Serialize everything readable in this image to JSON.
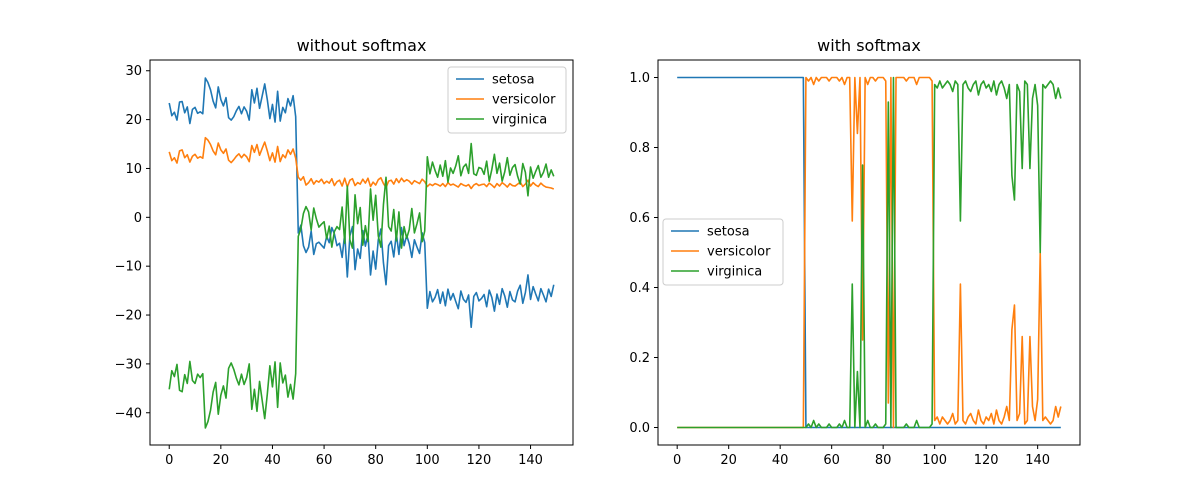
{
  "chart_data": [
    {
      "type": "line",
      "title": "without softmax",
      "xlabel": "",
      "ylabel": "",
      "xlim": [
        -7.45,
        156.45
      ],
      "ylim": [
        -46.6,
        32.2
      ],
      "xticks": [
        0,
        20,
        40,
        60,
        80,
        100,
        120,
        140
      ],
      "yticks": [
        -40,
        -30,
        -20,
        -10,
        0,
        10,
        20,
        30
      ],
      "grid": false,
      "legend_position": "top-right",
      "x": {
        "start": 0,
        "end": 149,
        "step": 1
      },
      "series": [
        {
          "name": "setosa",
          "color": "#1f77b4",
          "values": [
            23.4,
            20.8,
            21.5,
            19.9,
            23.6,
            23.7,
            21.4,
            22.6,
            19.2,
            22.1,
            22.5,
            21.3,
            21.6,
            21.2,
            28.5,
            27.6,
            26.1,
            23.8,
            22.4,
            26.7,
            24.1,
            22.8,
            24.5,
            20.4,
            19.9,
            20.6,
            21.8,
            22.7,
            21.2,
            22.6,
            21.7,
            19.9,
            26.1,
            23.4,
            26.4,
            22.3,
            24.8,
            27.3,
            24.1,
            20.2,
            23.1,
            19.5,
            25.8,
            19.7,
            22.5,
            21.4,
            24.3,
            22.8,
            24.9,
            20.6,
            -3.2,
            -1.6,
            -5.8,
            -7.2,
            -6.1,
            -2.8,
            -7.6,
            -5.4,
            -5.1,
            -5.7,
            -6.3,
            -3.9,
            -5.2,
            -2.1,
            -3.4,
            -5.8,
            -5.3,
            -8.2,
            -3.3,
            -12.2,
            -3.8,
            -1.9,
            -10.7,
            -6.5,
            -8.4,
            -2.7,
            -5.9,
            -3.5,
            -11.8,
            -6.9,
            -10.6,
            -4.6,
            -2.4,
            -9.3,
            -13.8,
            -5.8,
            -4.9,
            -8.1,
            -3.3,
            -7.6,
            -2.1,
            -5.8,
            -3.7,
            -5.4,
            -8.2,
            -4.6,
            -6.1,
            -7.4,
            -3.2,
            -5.2,
            -18.6,
            -15.2,
            -17.3,
            -16.4,
            -14.8,
            -17.6,
            -15.3,
            -18.1,
            -14.7,
            -16.9,
            -15.6,
            -17.2,
            -18.7,
            -15.1,
            -16.8,
            -17.4,
            -15.9,
            -22.5,
            -16.2,
            -15.4,
            -17.1,
            -16.6,
            -15.8,
            -18.3,
            -14.9,
            -16.4,
            -19.2,
            -15.7,
            -17.8,
            -14.6,
            -16.1,
            -18.4,
            -15.2,
            -16.9,
            -17.3,
            -15.1,
            -13.9,
            -17.6,
            -15.4,
            -11.8,
            -16.8,
            -14.2,
            -15.7,
            -17.1,
            -14.6,
            -15.9,
            -17.3,
            -14.7,
            -16.2,
            -13.8
          ]
        },
        {
          "name": "versicolor",
          "color": "#ff7f0e",
          "values": [
            13.4,
            11.6,
            12.2,
            11.1,
            13.6,
            13.8,
            12.2,
            12.8,
            11.3,
            12.5,
            12.9,
            12.1,
            12.4,
            12.1,
            16.3,
            15.8,
            14.9,
            13.6,
            12.8,
            15.2,
            13.8,
            13.1,
            14.0,
            11.7,
            11.2,
            11.8,
            12.5,
            13.0,
            12.2,
            12.9,
            12.4,
            11.4,
            14.7,
            13.3,
            14.9,
            12.7,
            14.1,
            15.4,
            13.6,
            11.6,
            13.2,
            11.3,
            14.5,
            11.4,
            12.8,
            12.2,
            13.8,
            12.9,
            14.0,
            12.1,
            8.2,
            7.6,
            8.3,
            6.6,
            7.1,
            7.9,
            6.8,
            7.5,
            7.2,
            7.8,
            6.9,
            7.4,
            7.0,
            7.9,
            6.5,
            7.3,
            7.6,
            6.4,
            8.0,
            6.2,
            7.6,
            7.9,
            6.5,
            7.1,
            6.8,
            7.8,
            7.0,
            8.0,
            6.3,
            7.2,
            6.6,
            7.7,
            8.1,
            6.9,
            6.1,
            7.4,
            7.6,
            6.8,
            7.9,
            7.1,
            8.0,
            7.3,
            7.7,
            7.4,
            6.8,
            7.5,
            7.2,
            6.9,
            7.8,
            7.3,
            6.3,
            6.8,
            6.5,
            6.9,
            6.7,
            6.4,
            6.9,
            6.3,
            7.1,
            6.6,
            6.8,
            6.5,
            6.2,
            6.9,
            6.6,
            6.4,
            6.7,
            5.9,
            6.6,
            6.9,
            6.5,
            6.7,
            6.8,
            6.3,
            7.0,
            6.6,
            6.1,
            6.9,
            6.4,
            7.1,
            6.7,
            6.2,
            6.9,
            6.5,
            6.4,
            6.8,
            7.2,
            6.3,
            6.8,
            7.6,
            6.4,
            7.1,
            6.6,
            6.3,
            7.0,
            6.5,
            6.2,
            6.1,
            6.0,
            5.8
          ]
        },
        {
          "name": "virginica",
          "color": "#2ca02c",
          "values": [
            -35.2,
            -31.4,
            -32.6,
            -30.1,
            -35.4,
            -35.7,
            -32.2,
            -34.0,
            -29.5,
            -33.4,
            -34.0,
            -32.1,
            -32.8,
            -32.0,
            -43.1,
            -41.8,
            -39.5,
            -35.8,
            -33.8,
            -40.3,
            -36.4,
            -34.5,
            -37.0,
            -30.9,
            -29.8,
            -31.1,
            -32.9,
            -34.3,
            -32.1,
            -34.2,
            -32.8,
            -30.0,
            -39.3,
            -35.2,
            -39.7,
            -33.6,
            -37.4,
            -41.2,
            -36.2,
            -30.4,
            -34.7,
            -29.6,
            -38.9,
            -29.8,
            -33.9,
            -32.3,
            -36.8,
            -34.2,
            -37.2,
            -32.0,
            -3.9,
            -2.4,
            0.8,
            2.2,
            1.1,
            -2.6,
            1.9,
            -0.3,
            -2.0,
            -1.4,
            -0.9,
            -4.4,
            -1.8,
            -6.1,
            -2.9,
            -1.9,
            -2.5,
            2.1,
            -5.3,
            6.4,
            -4.6,
            -6.3,
            4.6,
            -1.3,
            2.0,
            -5.7,
            -1.7,
            -5.0,
            5.8,
            -0.6,
            4.5,
            -3.8,
            -6.1,
            2.6,
            8.2,
            -1.9,
            -2.8,
            1.6,
            -4.8,
            1.1,
            -6.3,
            -1.9,
            -4.3,
            -2.5,
            1.8,
            -3.2,
            -1.3,
            0.9,
            -5.0,
            -2.8,
            12.4,
            8.9,
            11.3,
            9.6,
            8.2,
            10.7,
            8.4,
            11.6,
            7.2,
            10.1,
            9.0,
            10.5,
            12.6,
            8.5,
            10.3,
            10.9,
            9.0,
            15.1,
            8.9,
            8.6,
            10.2,
            10.0,
            8.8,
            11.5,
            7.4,
            9.8,
            12.9,
            9.0,
            11.1,
            7.4,
            9.3,
            12.2,
            8.6,
            10.2,
            10.8,
            8.4,
            6.8,
            11.0,
            9.2,
            4.4,
            10.3,
            8.0,
            9.4,
            10.6,
            8.2,
            9.2,
            10.9,
            8.2,
            9.7,
            8.4
          ]
        }
      ]
    },
    {
      "type": "line",
      "title": "with softmax",
      "xlabel": "",
      "ylabel": "",
      "xlim": [
        -7.45,
        156.45
      ],
      "ylim": [
        -0.05,
        1.05
      ],
      "xticks": [
        0,
        20,
        40,
        60,
        80,
        100,
        120,
        140
      ],
      "yticks": [
        0.0,
        0.2,
        0.4,
        0.6,
        0.8,
        1.0
      ],
      "grid": false,
      "legend_position": "center-left",
      "x": {
        "start": 0,
        "end": 149,
        "step": 1
      },
      "series": [
        {
          "name": "setosa",
          "color": "#1f77b4",
          "values": [
            1.0,
            1.0,
            1.0,
            1.0,
            1.0,
            1.0,
            1.0,
            1.0,
            1.0,
            1.0,
            1.0,
            1.0,
            1.0,
            1.0,
            1.0,
            1.0,
            1.0,
            1.0,
            1.0,
            1.0,
            1.0,
            1.0,
            1.0,
            1.0,
            1.0,
            1.0,
            1.0,
            1.0,
            1.0,
            1.0,
            1.0,
            1.0,
            1.0,
            1.0,
            1.0,
            1.0,
            1.0,
            1.0,
            1.0,
            1.0,
            1.0,
            1.0,
            1.0,
            1.0,
            1.0,
            1.0,
            1.0,
            1.0,
            1.0,
            1.0,
            0.0,
            0.0,
            0.0,
            0.0,
            0.0,
            0.0,
            0.0,
            0.0,
            0.0,
            0.0,
            0.0,
            0.0,
            0.0,
            0.0,
            0.0,
            0.0,
            0.0,
            0.0,
            0.0,
            0.0,
            0.0,
            0.0,
            0.0,
            0.0,
            0.0,
            0.0,
            0.0,
            0.0,
            0.0,
            0.0,
            0.0,
            0.0,
            0.0,
            0.0,
            0.0,
            0.0,
            0.0,
            0.0,
            0.0,
            0.0,
            0.0,
            0.0,
            0.0,
            0.0,
            0.0,
            0.0,
            0.0,
            0.0,
            0.0,
            0.0,
            0.0,
            0.0,
            0.0,
            0.0,
            0.0,
            0.0,
            0.0,
            0.0,
            0.0,
            0.0,
            0.0,
            0.0,
            0.0,
            0.0,
            0.0,
            0.0,
            0.0,
            0.0,
            0.0,
            0.0,
            0.0,
            0.0,
            0.0,
            0.0,
            0.0,
            0.0,
            0.0,
            0.0,
            0.0,
            0.0,
            0.0,
            0.0,
            0.0,
            0.0,
            0.0,
            0.0,
            0.0,
            0.0,
            0.0,
            0.0,
            0.0,
            0.0,
            0.0,
            0.0,
            0.0,
            0.0,
            0.0,
            0.0,
            0.0,
            0.0
          ]
        },
        {
          "name": "versicolor",
          "color": "#ff7f0e",
          "values": [
            0.0,
            0.0,
            0.0,
            0.0,
            0.0,
            0.0,
            0.0,
            0.0,
            0.0,
            0.0,
            0.0,
            0.0,
            0.0,
            0.0,
            0.0,
            0.0,
            0.0,
            0.0,
            0.0,
            0.0,
            0.0,
            0.0,
            0.0,
            0.0,
            0.0,
            0.0,
            0.0,
            0.0,
            0.0,
            0.0,
            0.0,
            0.0,
            0.0,
            0.0,
            0.0,
            0.0,
            0.0,
            0.0,
            0.0,
            0.0,
            0.0,
            0.0,
            0.0,
            0.0,
            0.0,
            0.0,
            0.0,
            0.0,
            0.0,
            0.0,
            1.0,
            0.99,
            1.0,
            0.98,
            1.0,
            0.99,
            1.0,
            1.0,
            1.0,
            0.99,
            1.0,
            1.0,
            1.0,
            0.99,
            1.0,
            0.98,
            1.0,
            1.0,
            0.59,
            1.0,
            0.84,
            1.0,
            0.25,
            1.0,
            0.98,
            1.0,
            1.0,
            0.99,
            1.0,
            1.0,
            1.0,
            0.99,
            0.07,
            1.0,
            0.0,
            1.0,
            1.0,
            1.0,
            1.0,
            0.99,
            1.0,
            1.0,
            1.0,
            0.98,
            1.0,
            1.0,
            1.0,
            1.0,
            1.0,
            0.99,
            0.02,
            0.03,
            0.01,
            0.03,
            0.02,
            0.01,
            0.02,
            0.04,
            0.01,
            0.02,
            0.41,
            0.02,
            0.01,
            0.03,
            0.04,
            0.02,
            0.01,
            0.05,
            0.02,
            0.01,
            0.03,
            0.02,
            0.04,
            0.01,
            0.05,
            0.02,
            0.01,
            0.03,
            0.06,
            0.02,
            0.28,
            0.35,
            0.02,
            0.04,
            0.26,
            0.01,
            0.02,
            0.26,
            0.06,
            0.02,
            0.08,
            0.5,
            0.02,
            0.03,
            0.02,
            0.01,
            0.02,
            0.06,
            0.03,
            0.06
          ]
        },
        {
          "name": "virginica",
          "color": "#2ca02c",
          "values": [
            0.0,
            0.0,
            0.0,
            0.0,
            0.0,
            0.0,
            0.0,
            0.0,
            0.0,
            0.0,
            0.0,
            0.0,
            0.0,
            0.0,
            0.0,
            0.0,
            0.0,
            0.0,
            0.0,
            0.0,
            0.0,
            0.0,
            0.0,
            0.0,
            0.0,
            0.0,
            0.0,
            0.0,
            0.0,
            0.0,
            0.0,
            0.0,
            0.0,
            0.0,
            0.0,
            0.0,
            0.0,
            0.0,
            0.0,
            0.0,
            0.0,
            0.0,
            0.0,
            0.0,
            0.0,
            0.0,
            0.0,
            0.0,
            0.0,
            0.0,
            0.0,
            0.01,
            0.0,
            0.02,
            0.0,
            0.01,
            0.0,
            0.0,
            0.0,
            0.01,
            0.0,
            0.0,
            0.0,
            0.01,
            0.0,
            0.02,
            0.0,
            0.0,
            0.41,
            0.0,
            0.16,
            0.0,
            0.75,
            0.0,
            0.02,
            0.0,
            0.0,
            0.01,
            0.0,
            0.0,
            0.0,
            0.01,
            0.93,
            0.0,
            1.0,
            0.0,
            0.0,
            0.0,
            0.0,
            0.01,
            0.0,
            0.0,
            0.0,
            0.02,
            0.0,
            0.0,
            0.0,
            0.0,
            0.0,
            0.01,
            0.98,
            0.97,
            0.99,
            0.97,
            0.98,
            0.99,
            0.98,
            0.96,
            0.99,
            0.98,
            0.59,
            0.98,
            0.99,
            0.97,
            0.96,
            0.98,
            0.99,
            0.95,
            0.98,
            0.99,
            0.97,
            0.98,
            0.96,
            0.99,
            0.95,
            0.98,
            0.99,
            0.97,
            0.94,
            0.98,
            0.72,
            0.65,
            0.98,
            0.96,
            0.74,
            0.99,
            0.98,
            0.74,
            0.94,
            0.98,
            0.92,
            0.5,
            0.98,
            0.97,
            0.98,
            0.99,
            0.98,
            0.94,
            0.97,
            0.94
          ]
        }
      ]
    }
  ]
}
